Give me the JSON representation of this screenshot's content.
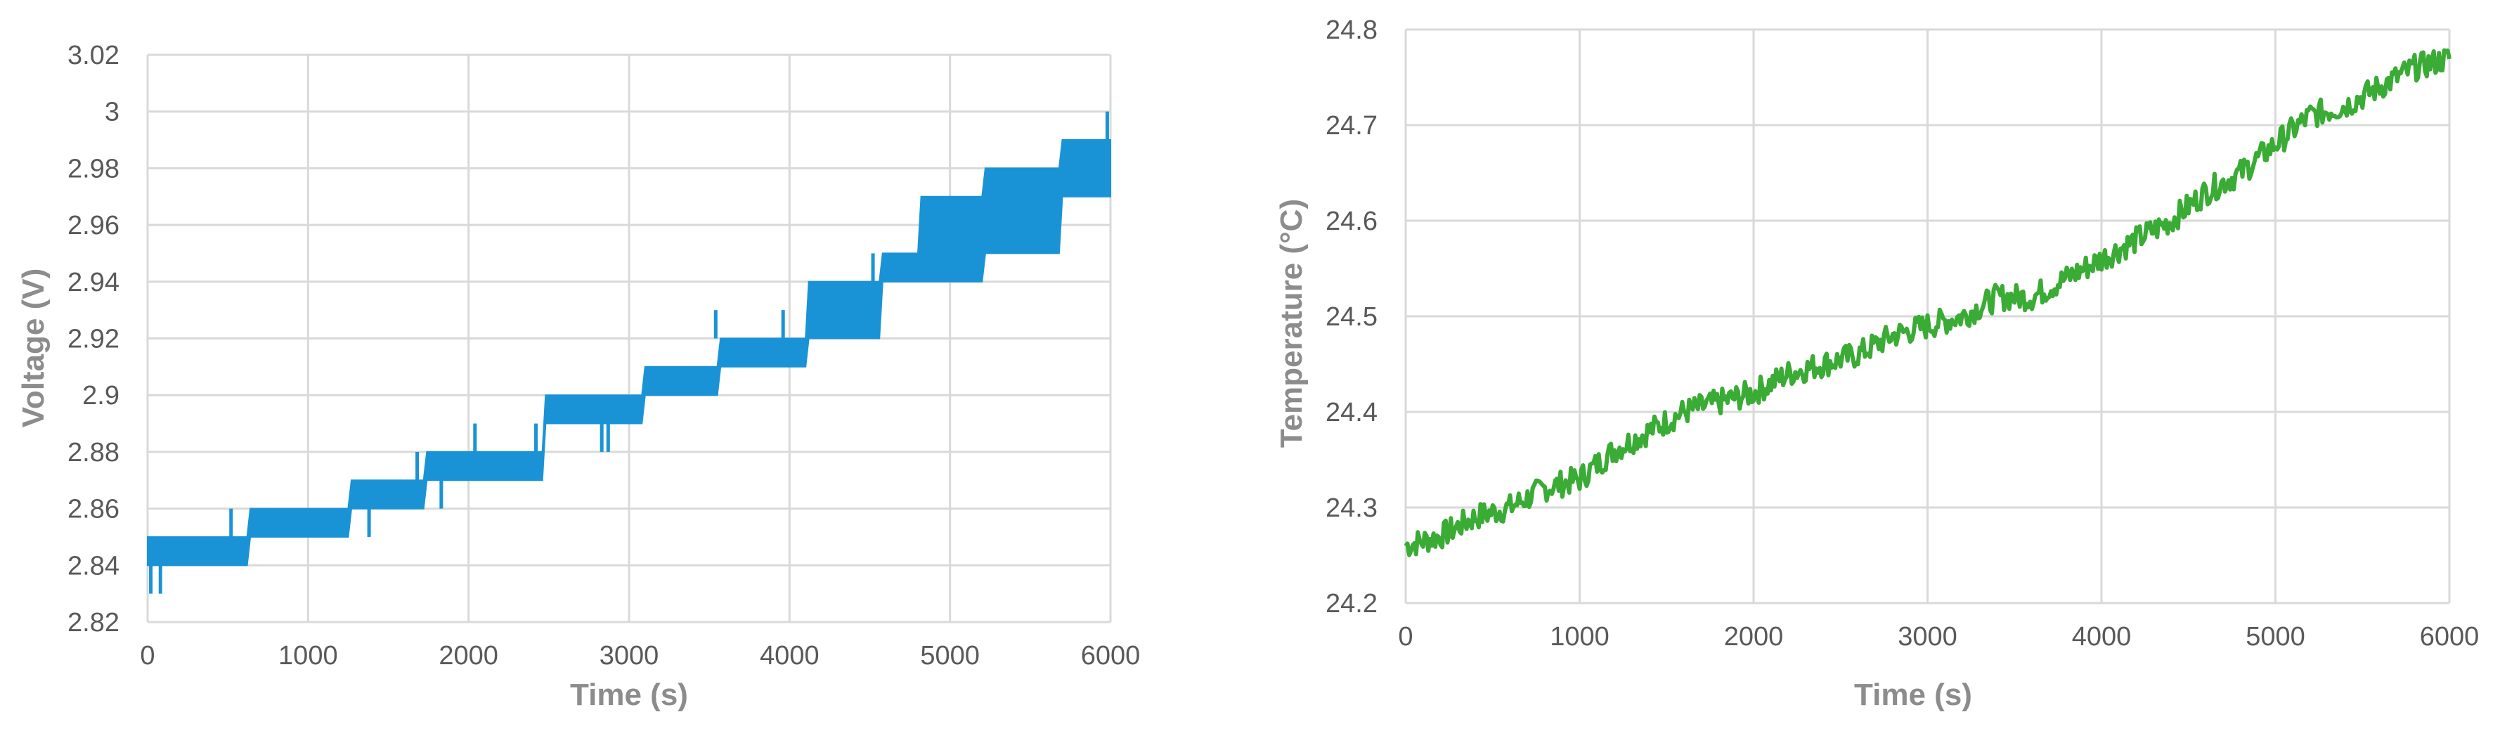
{
  "chart_data": [
    {
      "type": "line",
      "title": "",
      "xlabel": "Time (s)",
      "ylabel": "Voltage (V)",
      "xlim": [
        0,
        6000
      ],
      "ylim": [
        2.82,
        3.02
      ],
      "xticks": [
        "0",
        "1000",
        "2000",
        "3000",
        "4000",
        "5000",
        "6000"
      ],
      "yticks": [
        "2.82",
        "2.84",
        "2.86",
        "2.88",
        "2.9",
        "2.92",
        "2.94",
        "2.96",
        "2.98",
        "3",
        "3.02"
      ],
      "grid": true,
      "legend": "none",
      "color": "#1a93d6",
      "series": [
        {
          "x": [
            0,
            620,
            640,
            1250,
            1270,
            1720,
            1740,
            2460,
            2480,
            3080,
            3100,
            3550,
            3570,
            4100,
            4120,
            4560,
            4580,
            4800,
            4820,
            5200,
            5220,
            5680,
            5700,
            6000
          ],
          "y_low": [
            2.84,
            2.84,
            2.85,
            2.85,
            2.86,
            2.86,
            2.87,
            2.87,
            2.89,
            2.89,
            2.9,
            2.9,
            2.91,
            2.91,
            2.92,
            2.92,
            2.94,
            2.94,
            2.94,
            2.94,
            2.95,
            2.95,
            2.97,
            2.97
          ],
          "y_high": [
            2.85,
            2.85,
            2.86,
            2.86,
            2.87,
            2.87,
            2.88,
            2.88,
            2.9,
            2.9,
            2.91,
            2.91,
            2.92,
            2.92,
            2.94,
            2.94,
            2.95,
            2.95,
            2.97,
            2.97,
            2.98,
            2.98,
            2.99,
            2.99
          ],
          "spikes": [
            {
              "x": 20,
              "y": [
                2.83,
                2.85
              ]
            },
            {
              "x": 80,
              "y": [
                2.83,
                2.84
              ]
            },
            {
              "x": 520,
              "y": [
                2.84,
                2.86
              ]
            },
            {
              "x": 1380,
              "y": [
                2.85,
                2.86
              ]
            },
            {
              "x": 1680,
              "y": [
                2.87,
                2.88
              ]
            },
            {
              "x": 1830,
              "y": [
                2.86,
                2.87
              ]
            },
            {
              "x": 2040,
              "y": [
                2.88,
                2.89
              ]
            },
            {
              "x": 2420,
              "y": [
                2.88,
                2.89
              ]
            },
            {
              "x": 2830,
              "y": [
                2.88,
                2.89
              ]
            },
            {
              "x": 2870,
              "y": [
                2.88,
                2.89
              ]
            },
            {
              "x": 3540,
              "y": [
                2.92,
                2.93
              ]
            },
            {
              "x": 3960,
              "y": [
                2.92,
                2.93
              ]
            },
            {
              "x": 4330,
              "y": [
                2.93,
                2.94
              ]
            },
            {
              "x": 4520,
              "y": [
                2.94,
                2.95
              ]
            },
            {
              "x": 5330,
              "y": [
                2.96,
                2.97
              ]
            },
            {
              "x": 5450,
              "y": [
                2.96,
                2.97
              ]
            },
            {
              "x": 5980,
              "y": [
                2.99,
                3.0
              ]
            }
          ]
        }
      ]
    },
    {
      "type": "line",
      "title": "",
      "xlabel": "Time (s)",
      "ylabel": "Temperature (°C)",
      "xlim": [
        0,
        6000
      ],
      "ylim": [
        24.2,
        24.8
      ],
      "xticks": [
        "0",
        "1000",
        "2000",
        "3000",
        "4000",
        "5000",
        "6000"
      ],
      "yticks": [
        "24.2",
        "24.3",
        "24.4",
        "24.5",
        "24.6",
        "24.7",
        "24.8"
      ],
      "grid": true,
      "legend": "none",
      "color": "#3aab35",
      "series": [
        {
          "x": [
            0,
            200,
            400,
            600,
            800,
            1000,
            1200,
            1400,
            1600,
            1800,
            2000,
            2200,
            2400,
            2600,
            2800,
            3000,
            3200,
            3400,
            3600,
            3800,
            4000,
            4200,
            4400,
            4600,
            4800,
            5000,
            5200,
            5400,
            5600,
            5800,
            6000
          ],
          "y": [
            24.26,
            24.27,
            24.29,
            24.3,
            24.32,
            24.33,
            24.36,
            24.38,
            24.4,
            24.41,
            24.42,
            24.44,
            24.45,
            24.46,
            24.48,
            24.49,
            24.5,
            24.52,
            24.52,
            24.54,
            24.56,
            24.58,
            24.6,
            24.63,
            24.65,
            24.68,
            24.71,
            24.72,
            24.74,
            24.76,
            24.77
          ]
        }
      ]
    }
  ]
}
